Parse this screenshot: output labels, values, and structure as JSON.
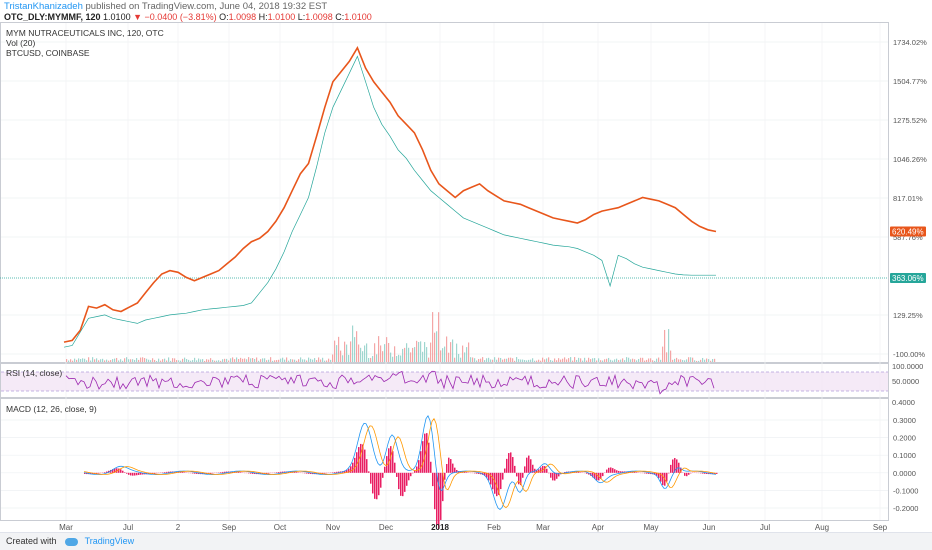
{
  "header": {
    "author": "TristanKhanizadeh",
    "published": "published on TradingView.com, June 04, 2018 19:32 EST",
    "symbol": "OTC_DLY:MYMMF, 120",
    "last": "1.0100",
    "change": "−0.0400 (−3.81%)",
    "o_label": "O:",
    "o_value": "1.0098",
    "h_label": "H:",
    "h_value": "1.0100",
    "l_label": "L:",
    "l_value": "1.0098",
    "c_label": "C:",
    "c_value": "1.0100"
  },
  "legend": {
    "main": "MYM NUTRACEUTICALS INC, 120, OTC",
    "vol": "Vol (20)",
    "compare": "BTCUSD, COINBASE"
  },
  "rsi": {
    "label": "RSI (14, close)"
  },
  "macd": {
    "label": "MACD (12, 26, close, 9)"
  },
  "footer": {
    "created": "Created with",
    "brand": "TradingView"
  },
  "colors": {
    "btc": "#e8561b",
    "mym": "#26a69a",
    "rsi": "#9c27b0",
    "macd": "#2196f3",
    "signal": "#ff9800",
    "hist_pos": "#e91e63",
    "hist_neg": "#e91e63",
    "badge_btc": "#e8561b",
    "badge_mym": "#26a69a"
  },
  "chart_data": {
    "type": "line",
    "x": [
      "Mar",
      "Jul",
      "2",
      "Sep",
      "Oct",
      "Nov",
      "Dec",
      "2018",
      "Feb",
      "Mar",
      "Apr",
      "May",
      "Jun",
      "Jul",
      "Aug",
      "Sep"
    ],
    "main_axis_ticks": [
      "1734.02%",
      "1504.77%",
      "1275.52%",
      "1046.26%",
      "817.01%",
      "587.76%",
      "129.25%",
      "-100.00%"
    ],
    "badges": {
      "btc": "620.49%",
      "mym": "363.06%"
    },
    "series": [
      {
        "name": "BTCUSD, COINBASE",
        "values": [
          [
            0,
            -30
          ],
          [
            20,
            -20
          ],
          [
            40,
            40
          ],
          [
            60,
            180
          ],
          [
            80,
            170
          ],
          [
            100,
            190
          ],
          [
            120,
            160
          ],
          [
            140,
            150
          ],
          [
            160,
            175
          ],
          [
            180,
            200
          ],
          [
            200,
            260
          ],
          [
            220,
            320
          ],
          [
            240,
            370
          ],
          [
            260,
            390
          ],
          [
            280,
            380
          ],
          [
            300,
            350
          ],
          [
            320,
            330
          ],
          [
            340,
            350
          ],
          [
            360,
            370
          ],
          [
            380,
            390
          ],
          [
            400,
            430
          ],
          [
            420,
            470
          ],
          [
            440,
            520
          ],
          [
            460,
            560
          ],
          [
            480,
            580
          ],
          [
            500,
            620
          ],
          [
            520,
            680
          ],
          [
            540,
            760
          ],
          [
            560,
            860
          ],
          [
            580,
            960
          ],
          [
            600,
            1020
          ],
          [
            620,
            1180
          ],
          [
            640,
            1350
          ],
          [
            660,
            1500
          ],
          [
            680,
            1560
          ],
          [
            700,
            1620
          ],
          [
            720,
            1700
          ],
          [
            740,
            1580
          ],
          [
            760,
            1500
          ],
          [
            780,
            1440
          ],
          [
            800,
            1380
          ],
          [
            820,
            1300
          ],
          [
            840,
            1250
          ],
          [
            860,
            1200
          ],
          [
            880,
            1100
          ],
          [
            900,
            980
          ],
          [
            920,
            900
          ],
          [
            940,
            860
          ],
          [
            960,
            820
          ],
          [
            980,
            860
          ],
          [
            1000,
            880
          ],
          [
            1020,
            900
          ],
          [
            1040,
            860
          ],
          [
            1060,
            830
          ],
          [
            1080,
            800
          ],
          [
            1100,
            790
          ],
          [
            1120,
            780
          ],
          [
            1140,
            760
          ],
          [
            1160,
            740
          ],
          [
            1180,
            720
          ],
          [
            1200,
            700
          ],
          [
            1220,
            690
          ],
          [
            1240,
            680
          ],
          [
            1260,
            670
          ],
          [
            1280,
            690
          ],
          [
            1300,
            720
          ],
          [
            1320,
            740
          ],
          [
            1340,
            750
          ],
          [
            1360,
            760
          ],
          [
            1380,
            780
          ],
          [
            1400,
            800
          ],
          [
            1420,
            820
          ],
          [
            1440,
            810
          ],
          [
            1460,
            800
          ],
          [
            1480,
            780
          ],
          [
            1500,
            760
          ],
          [
            1520,
            720
          ],
          [
            1540,
            680
          ],
          [
            1560,
            650
          ],
          [
            1580,
            630
          ],
          [
            1600,
            620
          ]
        ]
      },
      {
        "name": "MYMMF",
        "values": [
          [
            0,
            -60
          ],
          [
            20,
            -50
          ],
          [
            40,
            30
          ],
          [
            60,
            110
          ],
          [
            80,
            120
          ],
          [
            100,
            130
          ],
          [
            120,
            110
          ],
          [
            140,
            100
          ],
          [
            160,
            90
          ],
          [
            180,
            80
          ],
          [
            200,
            100
          ],
          [
            220,
            110
          ],
          [
            240,
            120
          ],
          [
            260,
            130
          ],
          [
            280,
            135
          ],
          [
            300,
            140
          ],
          [
            320,
            150
          ],
          [
            340,
            160
          ],
          [
            360,
            165
          ],
          [
            380,
            170
          ],
          [
            400,
            175
          ],
          [
            420,
            180
          ],
          [
            440,
            185
          ],
          [
            460,
            200
          ],
          [
            480,
            260
          ],
          [
            500,
            320
          ],
          [
            520,
            400
          ],
          [
            540,
            500
          ],
          [
            560,
            620
          ],
          [
            580,
            720
          ],
          [
            600,
            820
          ],
          [
            620,
            1000
          ],
          [
            640,
            1200
          ],
          [
            660,
            1350
          ],
          [
            680,
            1450
          ],
          [
            700,
            1550
          ],
          [
            720,
            1650
          ],
          [
            740,
            1500
          ],
          [
            760,
            1350
          ],
          [
            780,
            1250
          ],
          [
            800,
            1180
          ],
          [
            820,
            1100
          ],
          [
            840,
            1050
          ],
          [
            860,
            980
          ],
          [
            880,
            920
          ],
          [
            900,
            860
          ],
          [
            920,
            820
          ],
          [
            940,
            780
          ],
          [
            960,
            740
          ],
          [
            980,
            700
          ],
          [
            1000,
            680
          ],
          [
            1020,
            660
          ],
          [
            1040,
            640
          ],
          [
            1060,
            620
          ],
          [
            1080,
            600
          ],
          [
            1100,
            590
          ],
          [
            1120,
            580
          ],
          [
            1140,
            570
          ],
          [
            1160,
            560
          ],
          [
            1180,
            550
          ],
          [
            1200,
            540
          ],
          [
            1220,
            535
          ],
          [
            1240,
            530
          ],
          [
            1260,
            520
          ],
          [
            1280,
            500
          ],
          [
            1300,
            480
          ],
          [
            1320,
            450
          ],
          [
            1340,
            300
          ],
          [
            1360,
            480
          ],
          [
            1380,
            460
          ],
          [
            1400,
            430
          ],
          [
            1420,
            410
          ],
          [
            1440,
            400
          ],
          [
            1460,
            390
          ],
          [
            1480,
            380
          ],
          [
            1500,
            370
          ],
          [
            1520,
            365
          ],
          [
            1540,
            363
          ],
          [
            1560,
            363
          ],
          [
            1580,
            363
          ],
          [
            1600,
            363
          ]
        ]
      }
    ],
    "rsi_ticks": [
      "100.0000",
      "50.0000",
      "0.4000"
    ],
    "macd_ticks": [
      "0.3000",
      "0.2000",
      "0.1000",
      "0.0000",
      "-0.1000",
      "-0.2000"
    ]
  }
}
